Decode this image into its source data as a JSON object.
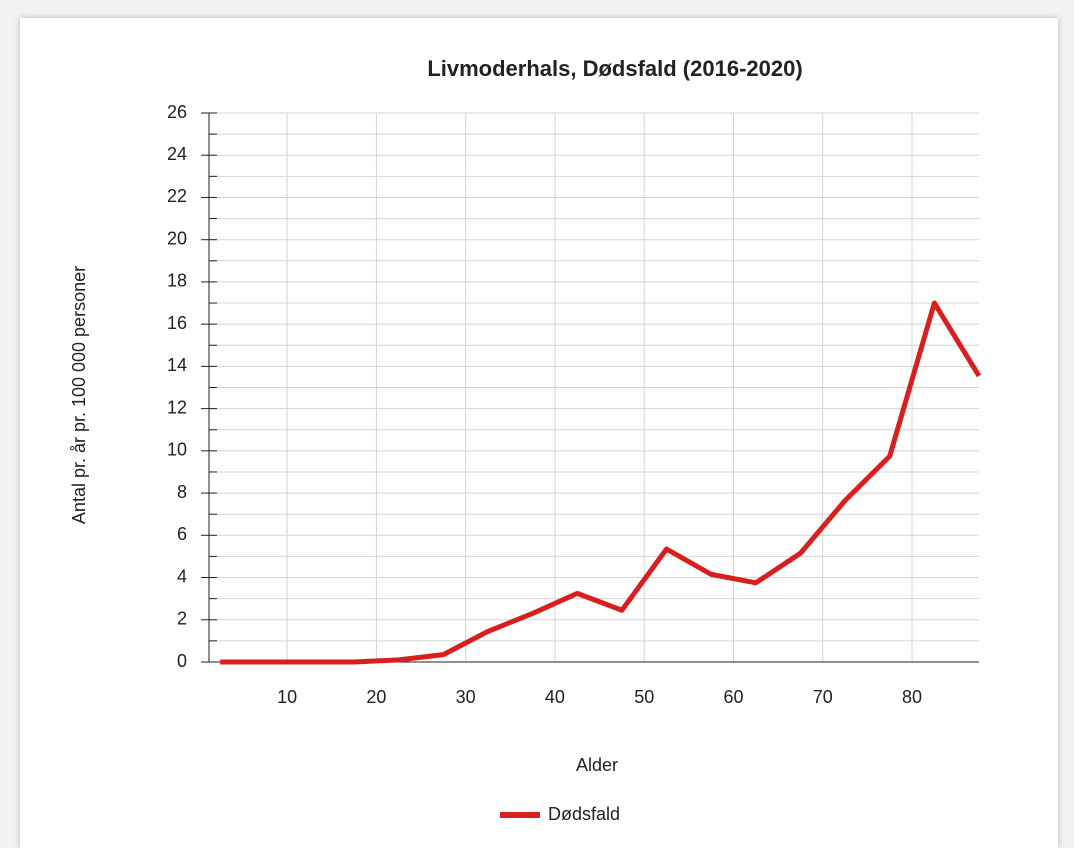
{
  "chart_data": {
    "type": "line",
    "title": "Livmoderhals, Dødsfald (2016-2020)",
    "xlabel": "Alder",
    "ylabel": "Antal pr. år pr. 100 000 personer",
    "x": [
      2.5,
      7.5,
      12.5,
      17.5,
      22.5,
      27.5,
      32.5,
      37.5,
      42.5,
      47.5,
      52.5,
      57.5,
      62.5,
      67.5,
      72.5,
      77.5,
      82.5,
      87.5
    ],
    "series": [
      {
        "name": "Dødsfald",
        "color": "#d91e1e",
        "values": [
          0,
          0,
          0,
          0,
          0.1,
          0.35,
          1.45,
          2.3,
          3.25,
          2.45,
          5.35,
          4.15,
          3.75,
          5.15,
          7.65,
          9.75,
          17.0,
          13.55
        ]
      }
    ],
    "xlim": [
      1.25,
      87.5
    ],
    "xticks": [
      10,
      20,
      30,
      40,
      50,
      60,
      70,
      80
    ],
    "ylim": [
      0,
      26
    ],
    "yticks": [
      0,
      2,
      4,
      6,
      8,
      10,
      12,
      14,
      16,
      18,
      20,
      22,
      24,
      26
    ],
    "yticks_minor": [
      1,
      3,
      5,
      7,
      9,
      11,
      13,
      15,
      17,
      19,
      21,
      23,
      25
    ],
    "grid": true,
    "legend": "bottom"
  }
}
